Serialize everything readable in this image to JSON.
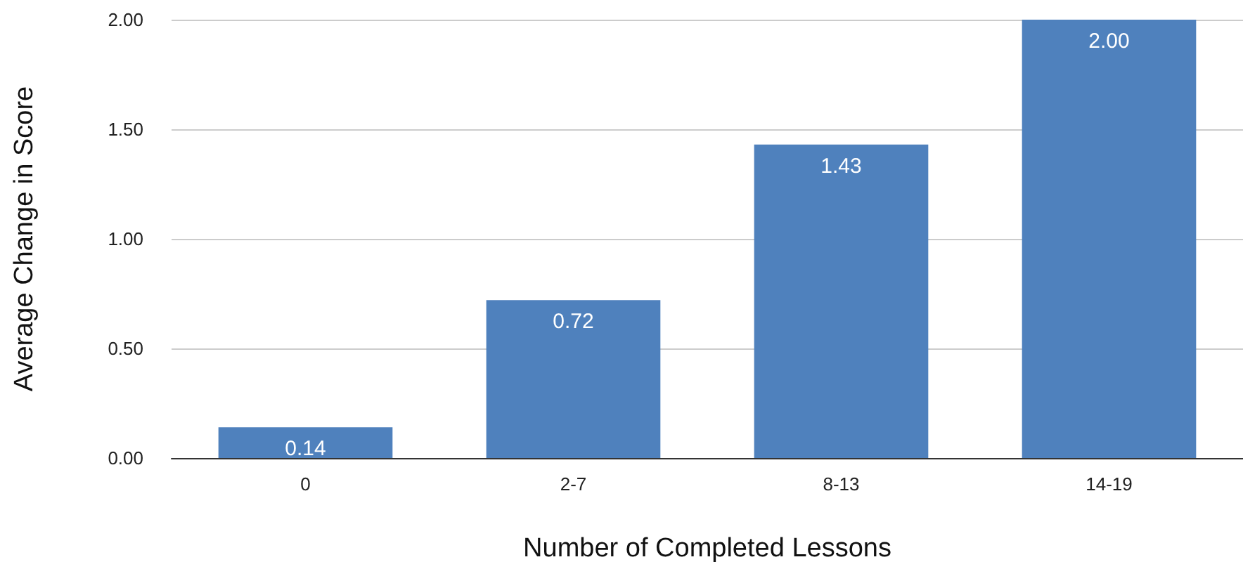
{
  "chart_data": {
    "type": "bar",
    "xlabel": "Number of Completed Lessons",
    "ylabel": "Average Change in Score",
    "categories": [
      "0",
      "2-7",
      "8-13",
      "14-19"
    ],
    "values": [
      0.14,
      0.72,
      1.43,
      2.0
    ],
    "value_labels": [
      "0.14",
      "0.72",
      "1.43",
      "2.00"
    ],
    "color": "#4f81bd",
    "ylim": [
      0,
      2
    ],
    "yticks": [
      {
        "value": 0,
        "label": "0.00"
      },
      {
        "value": 0.5,
        "label": "0.50"
      },
      {
        "value": 1,
        "label": "1.00"
      },
      {
        "value": 1.5,
        "label": "1.50"
      },
      {
        "value": 2,
        "label": "2.00"
      }
    ],
    "grid": "y"
  }
}
